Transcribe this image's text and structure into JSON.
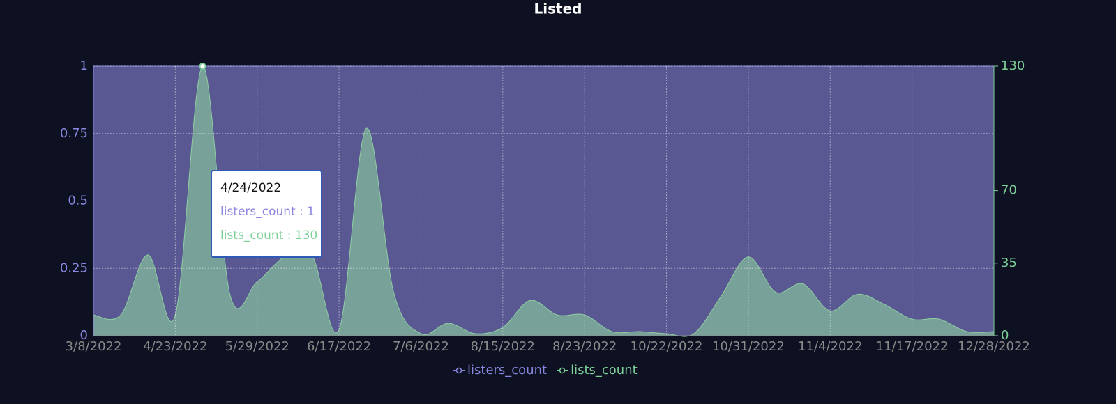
{
  "chart_data": {
    "type": "area",
    "title": "Listed",
    "categories": [
      "3/8/2022",
      null,
      null,
      "4/23/2022",
      null,
      null,
      "5/29/2022",
      null,
      null,
      "6/17/2022",
      null,
      null,
      "7/6/2022",
      null,
      null,
      "8/15/2022",
      null,
      null,
      "8/23/2022",
      null,
      null,
      "10/22/2022",
      null,
      null,
      "10/31/2022",
      null,
      null,
      "11/4/2022",
      null,
      null,
      "11/17/2022",
      null,
      null,
      "12/28/2022"
    ],
    "series": [
      {
        "name": "listers_count",
        "color": "#8b87e0",
        "values": [
          1,
          1,
          1,
          1,
          1,
          1,
          1,
          1,
          1,
          1,
          1,
          1,
          1,
          1,
          1,
          1,
          1,
          1,
          1,
          1,
          1,
          1,
          1,
          1,
          1,
          1,
          1,
          1,
          1,
          1,
          1,
          1,
          1,
          1
        ]
      },
      {
        "name": "lists_count",
        "color": "#7ccf97",
        "axis": "y2",
        "values": [
          10,
          10,
          39,
          10,
          130,
          20,
          26,
          38,
          39,
          3,
          100,
          21,
          1,
          6,
          1,
          4,
          17,
          10,
          10,
          2,
          2,
          1,
          1,
          19,
          38,
          21,
          25,
          12,
          20,
          15,
          8,
          8,
          2,
          2
        ]
      }
    ],
    "ylim": [
      0,
      1
    ],
    "yticks": [
      0,
      0.25,
      0.5,
      0.75,
      1
    ],
    "y2lim": [
      0,
      130
    ],
    "y2ticks": [
      0,
      35,
      70,
      130
    ],
    "grid": true,
    "legend": "bottom",
    "tooltip": {
      "title": "4/24/2022",
      "lines": [
        "listers_count : 1",
        "lists_count : 130"
      ]
    }
  }
}
